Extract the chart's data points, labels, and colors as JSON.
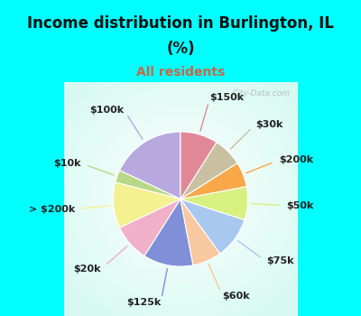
{
  "title_line1": "Income distribution in Burlington, IL",
  "title_line2": "(%)",
  "subtitle": "All residents",
  "title_color": "#111111",
  "subtitle_color": "#cc6644",
  "bg_top": "#00ffff",
  "bg_chart": "#e0f5ee",
  "watermark": "City-Data.com",
  "labels": [
    "$100k",
    "$10k",
    "> $200k",
    "$20k",
    "$125k",
    "$60k",
    "$75k",
    "$50k",
    "$200k",
    "$30k",
    "$150k"
  ],
  "values": [
    18,
    3,
    11,
    9,
    12,
    7,
    10,
    8,
    6,
    7,
    9
  ],
  "colors": [
    "#b8a8e0",
    "#b8d888",
    "#f5f090",
    "#f0b0c8",
    "#8090d8",
    "#f8c8a0",
    "#a8c8f0",
    "#d8f080",
    "#f8a848",
    "#c8c0a0",
    "#e08898"
  ],
  "startangle": 90,
  "figsize": [
    4.0,
    3.5
  ],
  "dpi": 100,
  "label_fontsize": 8,
  "title_fontsize": 12,
  "subtitle_fontsize": 10
}
